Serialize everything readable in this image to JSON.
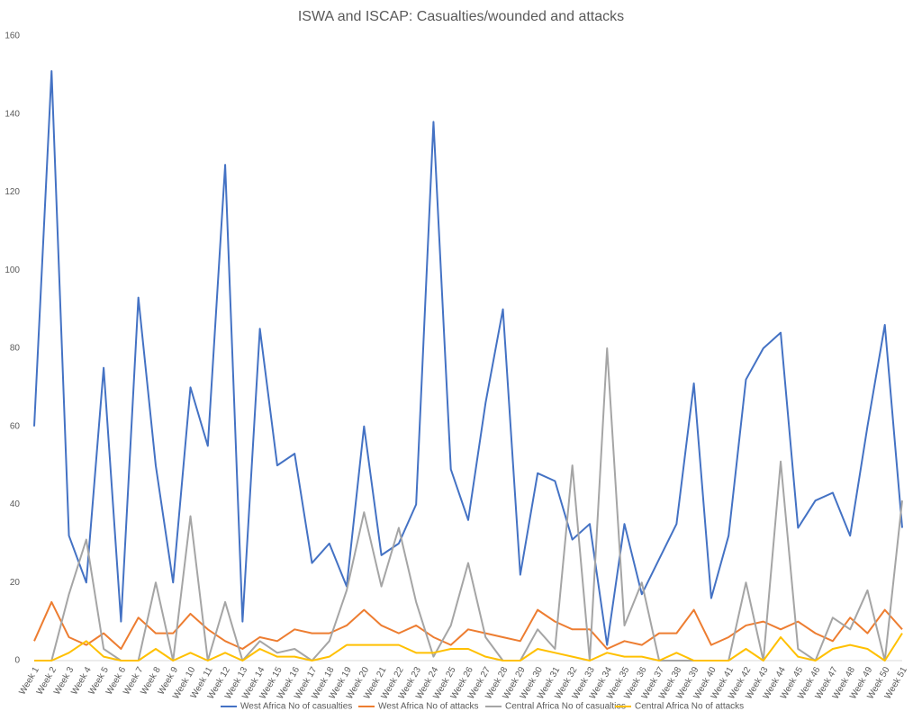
{
  "chart_data": {
    "type": "line",
    "title": "ISWA and ISCAP: Casualties/wounded and attacks",
    "categories": [
      "Week 1",
      "Week 2",
      "Week 3",
      "Week 4",
      "Week 5",
      "Week 6",
      "Week 7",
      "Week 8",
      "Week 9",
      "Week 10",
      "Week 11",
      "Week 12",
      "Week 13",
      "Week 14",
      "Week 15",
      "Week 16",
      "Week 17",
      "Week 18",
      "Week 19",
      "Week 20",
      "Week 21",
      "Week 22",
      "Week 23",
      "Week 24",
      "Week 25",
      "Week 26",
      "Week 27",
      "Week 28",
      "Week 29",
      "Week 30",
      "Week 31",
      "Week 32",
      "Week 33",
      "Week 34",
      "Week 35",
      "Week 36",
      "Week 37",
      "Week 38",
      "Week 39",
      "Week 40",
      "Week 41",
      "Week 42",
      "Week 43",
      "Week 44",
      "Week 45",
      "Week 46",
      "Week 47",
      "Week 48",
      "Week 49",
      "Week 50",
      "Week 51"
    ],
    "series": [
      {
        "name": "West Africa No of casualties",
        "color": "#4472c4",
        "values": [
          60,
          151,
          32,
          20,
          75,
          10,
          93,
          50,
          20,
          70,
          55,
          127,
          10,
          85,
          50,
          53,
          25,
          30,
          19,
          60,
          27,
          30,
          40,
          138,
          49,
          36,
          66,
          90,
          22,
          48,
          46,
          31,
          35,
          4,
          35,
          17,
          26,
          35,
          71,
          16,
          32,
          72,
          80,
          84,
          34,
          41,
          43,
          32,
          60,
          86,
          34
        ]
      },
      {
        "name": "West Africa No of attacks",
        "color": "#ed7d31",
        "values": [
          5,
          15,
          6,
          4,
          7,
          3,
          11,
          7,
          7,
          12,
          8,
          5,
          3,
          6,
          5,
          8,
          7,
          7,
          9,
          13,
          9,
          7,
          9,
          6,
          4,
          8,
          7,
          6,
          5,
          13,
          10,
          8,
          8,
          3,
          5,
          4,
          7,
          7,
          13,
          4,
          6,
          9,
          10,
          8,
          10,
          7,
          5,
          11,
          7,
          13,
          8
        ]
      },
      {
        "name": "Central Africa No of casualties",
        "color": "#a5a5a5",
        "values": [
          0,
          0,
          17,
          31,
          3,
          0,
          0,
          20,
          0,
          37,
          0,
          15,
          0,
          5,
          2,
          3,
          0,
          5,
          18,
          38,
          19,
          34,
          15,
          1,
          9,
          25,
          6,
          0,
          0,
          8,
          3,
          50,
          0,
          80,
          9,
          20,
          0,
          0,
          0,
          0,
          0,
          20,
          0,
          51,
          3,
          0,
          11,
          8,
          18,
          0,
          41
        ]
      },
      {
        "name": "Central Africa No of attacks",
        "color": "#ffc000",
        "values": [
          0,
          0,
          2,
          5,
          1,
          0,
          0,
          3,
          0,
          2,
          0,
          2,
          0,
          3,
          1,
          1,
          0,
          1,
          4,
          4,
          4,
          4,
          2,
          2,
          3,
          3,
          1,
          0,
          0,
          3,
          2,
          1,
          0,
          2,
          1,
          1,
          0,
          2,
          0,
          0,
          0,
          3,
          0,
          6,
          1,
          0,
          3,
          4,
          3,
          0,
          7
        ]
      }
    ],
    "ylim": [
      0,
      160
    ],
    "yticks": [
      0,
      20,
      40,
      60,
      80,
      100,
      120,
      140,
      160
    ],
    "legend": "bottom"
  }
}
